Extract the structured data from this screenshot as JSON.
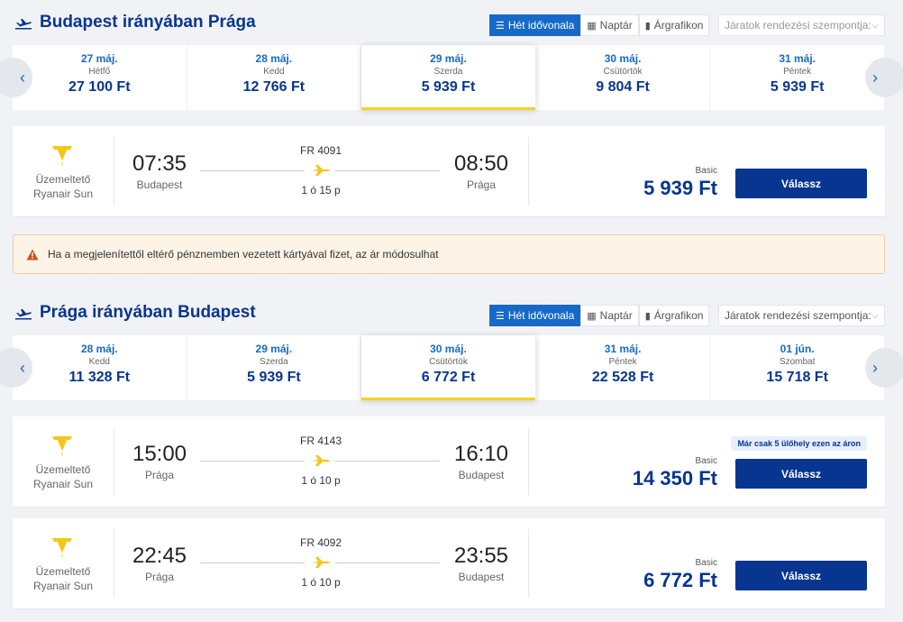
{
  "outbound": {
    "title": "Budapest irányában Prága",
    "view_tabs": [
      {
        "label": "Hét idővonala",
        "icon": "list-icon",
        "active": true
      },
      {
        "label": "Naptár",
        "icon": "calendar-icon",
        "active": false
      },
      {
        "label": "Árgrafikon",
        "icon": "bar-chart-icon",
        "active": false
      }
    ],
    "sort_placeholder": "Járatok rendezési szempontja:",
    "dates": [
      {
        "date": "27 máj.",
        "weekday": "Hétfő",
        "price": "27 100 Ft",
        "selected": false
      },
      {
        "date": "28 máj.",
        "weekday": "Kedd",
        "price": "12 766 Ft",
        "selected": false
      },
      {
        "date": "29 máj.",
        "weekday": "Szerda",
        "price": "5 939 Ft",
        "selected": true
      },
      {
        "date": "30 máj.",
        "weekday": "Csütörtök",
        "price": "9 804 Ft",
        "selected": false
      },
      {
        "date": "31 máj.",
        "weekday": "Péntek",
        "price": "5 939 Ft",
        "selected": false
      }
    ],
    "flights": [
      {
        "operator_label": "Üzemeltető",
        "operator": "Ryanair Sun",
        "dep_time": "07:35",
        "dep_city": "Budapest",
        "flight_no": "FR 4091",
        "duration": "1 ó 15 p",
        "arr_time": "08:50",
        "arr_city": "Prága",
        "fare": "Basic",
        "price": "5 939 Ft",
        "button": "Válassz",
        "badge": ""
      }
    ]
  },
  "warning": {
    "text": "Ha a megjelenítettől eltérő pénznemben vezetett kártyával fizet, az ár módosulhat",
    "icon": "warning-icon"
  },
  "return": {
    "title": "Prága irányában Budapest",
    "view_tabs": [
      {
        "label": "Hét idővonala",
        "icon": "list-icon",
        "active": true
      },
      {
        "label": "Naptár",
        "icon": "calendar-icon",
        "active": false
      },
      {
        "label": "Árgrafikon",
        "icon": "bar-chart-icon",
        "active": false
      }
    ],
    "sort_placeholder": "Járatok rendezési szempontja:",
    "dates": [
      {
        "date": "28 máj.",
        "weekday": "Kedd",
        "price": "11 328 Ft",
        "selected": false
      },
      {
        "date": "29 máj.",
        "weekday": "Szerda",
        "price": "5 939 Ft",
        "selected": false
      },
      {
        "date": "30 máj.",
        "weekday": "Csütörtök",
        "price": "6 772 Ft",
        "selected": true
      },
      {
        "date": "31 máj.",
        "weekday": "Péntek",
        "price": "22 528 Ft",
        "selected": false
      },
      {
        "date": "01 jún.",
        "weekday": "Szombat",
        "price": "15 718 Ft",
        "selected": false
      }
    ],
    "flights": [
      {
        "operator_label": "Üzemeltető",
        "operator": "Ryanair Sun",
        "dep_time": "15:00",
        "dep_city": "Prága",
        "flight_no": "FR 4143",
        "duration": "1 ó 10 p",
        "arr_time": "16:10",
        "arr_city": "Budapest",
        "fare": "Basic",
        "price": "14 350 Ft",
        "button": "Válassz",
        "badge": "Már csak 5 ülőhely ezen az áron"
      },
      {
        "operator_label": "Üzemeltető",
        "operator": "Ryanair Sun",
        "dep_time": "22:45",
        "dep_city": "Prága",
        "flight_no": "FR 4092",
        "duration": "1 ó 10 p",
        "arr_time": "23:55",
        "arr_city": "Budapest",
        "fare": "Basic",
        "price": "6 772 Ft",
        "button": "Válassz",
        "badge": ""
      }
    ]
  },
  "colors": {
    "brand": "#073590",
    "accent": "#1769c7",
    "highlight": "#f5d12b"
  }
}
